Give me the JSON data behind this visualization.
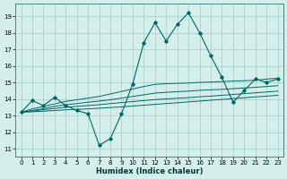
{
  "xlabel": "Humidex (Indice chaleur)",
  "x_values": [
    0,
    1,
    2,
    3,
    4,
    5,
    6,
    7,
    8,
    9,
    10,
    11,
    12,
    13,
    14,
    15,
    16,
    17,
    18,
    19,
    20,
    21,
    22,
    23
  ],
  "series": {
    "main": [
      13.2,
      13.9,
      13.6,
      14.1,
      13.6,
      13.3,
      13.1,
      11.2,
      11.6,
      13.1,
      14.9,
      17.4,
      18.6,
      17.5,
      18.5,
      19.2,
      18.0,
      16.6,
      15.3,
      13.8,
      14.5,
      15.2,
      15.0,
      15.2
    ],
    "trend1": [
      13.2,
      13.4,
      13.55,
      13.7,
      13.85,
      13.95,
      14.05,
      14.15,
      14.3,
      14.45,
      14.6,
      14.75,
      14.88,
      14.92,
      14.94,
      14.96,
      15.0,
      15.02,
      15.05,
      15.08,
      15.1,
      15.13,
      15.2,
      15.25
    ],
    "trend2": [
      13.2,
      13.3,
      13.42,
      13.55,
      13.65,
      13.72,
      13.8,
      13.87,
      13.95,
      14.05,
      14.15,
      14.25,
      14.35,
      14.4,
      14.44,
      14.47,
      14.52,
      14.55,
      14.58,
      14.62,
      14.66,
      14.7,
      14.75,
      14.8
    ],
    "trend3": [
      13.2,
      13.27,
      13.35,
      13.42,
      13.5,
      13.55,
      13.6,
      13.65,
      13.72,
      13.78,
      13.84,
      13.9,
      13.96,
      14.0,
      14.04,
      14.08,
      14.13,
      14.17,
      14.22,
      14.27,
      14.32,
      14.37,
      14.42,
      14.47
    ],
    "trend4": [
      13.2,
      13.22,
      13.26,
      13.3,
      13.34,
      13.37,
      13.4,
      13.44,
      13.48,
      13.52,
      13.57,
      13.62,
      13.67,
      13.72,
      13.77,
      13.82,
      13.87,
      13.92,
      13.97,
      14.02,
      14.07,
      14.12,
      14.17,
      14.22
    ]
  },
  "line_color": "#006666",
  "bg_color": "#d4eeea",
  "grid_color": "#9ecec8",
  "ylim": [
    10.5,
    19.75
  ],
  "yticks": [
    11,
    12,
    13,
    14,
    15,
    16,
    17,
    18,
    19
  ],
  "xticks": [
    0,
    1,
    2,
    3,
    4,
    5,
    6,
    7,
    8,
    9,
    10,
    11,
    12,
    13,
    14,
    15,
    16,
    17,
    18,
    19,
    20,
    21,
    22,
    23
  ]
}
